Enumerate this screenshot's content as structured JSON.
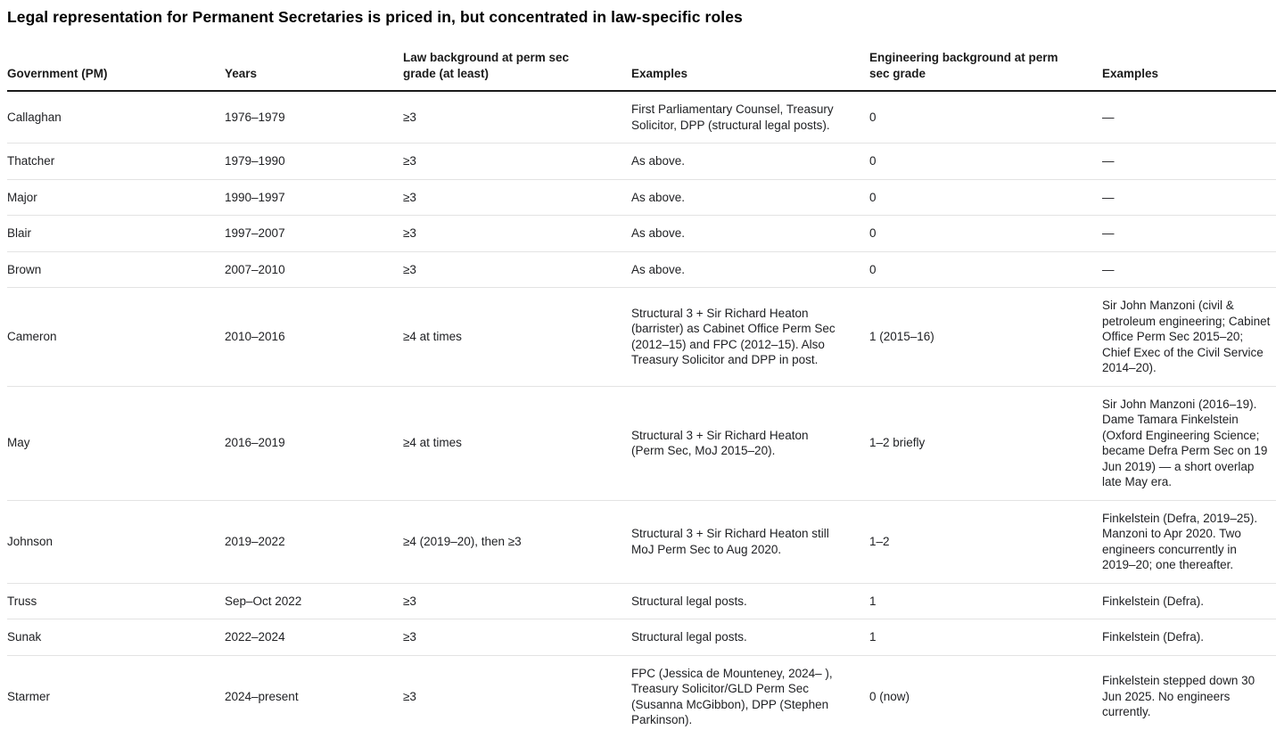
{
  "title": "Legal representation for Permanent Secretaries is priced in, but concentrated in law-specific roles",
  "table": {
    "columns": [
      "Government (PM)",
      "Years",
      "Law background at perm sec grade (at least)",
      "Examples",
      "Engineering background at perm sec grade",
      "Examples"
    ],
    "column_keys": [
      "government",
      "years",
      "law-background",
      "law-examples",
      "engineering-background",
      "engineering-examples"
    ],
    "rows": [
      [
        "Callaghan",
        "1976–1979",
        "≥3",
        "First Parliamentary Counsel, Treasury Solicitor, DPP (structural legal posts).",
        "0",
        "—"
      ],
      [
        "Thatcher",
        "1979–1990",
        "≥3",
        "As above.",
        "0",
        "—"
      ],
      [
        "Major",
        "1990–1997",
        "≥3",
        "As above.",
        "0",
        "—"
      ],
      [
        "Blair",
        "1997–2007",
        "≥3",
        "As above.",
        "0",
        "—"
      ],
      [
        "Brown",
        "2007–2010",
        "≥3",
        "As above.",
        "0",
        "—"
      ],
      [
        "Cameron",
        "2010–2016",
        "≥4 at times",
        "Structural 3 + Sir Richard Heaton (barrister) as Cabinet Office Perm Sec (2012–15) and FPC (2012–15). Also Treasury Solicitor and DPP in post.",
        "1 (2015–16)",
        "Sir John Manzoni (civil & petroleum engineering; Cabinet Office Perm Sec 2015–20; Chief Exec of the Civil Service 2014–20)."
      ],
      [
        "May",
        "2016–2019",
        "≥4 at times",
        "Structural 3 + Sir Richard Heaton (Perm Sec, MoJ 2015–20).",
        "1–2 briefly",
        "Sir John Manzoni (2016–19). Dame Tamara Finkelstein (Oxford Engineering Science; became Defra Perm Sec on 19 Jun 2019) — a short overlap late May era."
      ],
      [
        "Johnson",
        "2019–2022",
        "≥4 (2019–20), then ≥3",
        "Structural 3 + Sir Richard Heaton still MoJ Perm Sec to Aug 2020.",
        "1–2",
        "Finkelstein (Defra, 2019–25). Manzoni to Apr 2020. Two engineers concurrently in 2019–20; one thereafter."
      ],
      [
        "Truss",
        "Sep–Oct 2022",
        "≥3",
        "Structural legal posts.",
        "1",
        "Finkelstein (Defra)."
      ],
      [
        "Sunak",
        "2022–2024",
        "≥3",
        "Structural legal posts.",
        "1",
        "Finkelstein (Defra)."
      ],
      [
        "Starmer",
        "2024–present",
        "≥3",
        "FPC (Jessica de Mounteney, 2024– ), Treasury Solicitor/GLD Perm Sec (Susanna McGibbon), DPP (Stephen Parkinson).",
        "0 (now)",
        "Finkelstein stepped down 30 Jun 2025. No engineers currently."
      ]
    ]
  }
}
